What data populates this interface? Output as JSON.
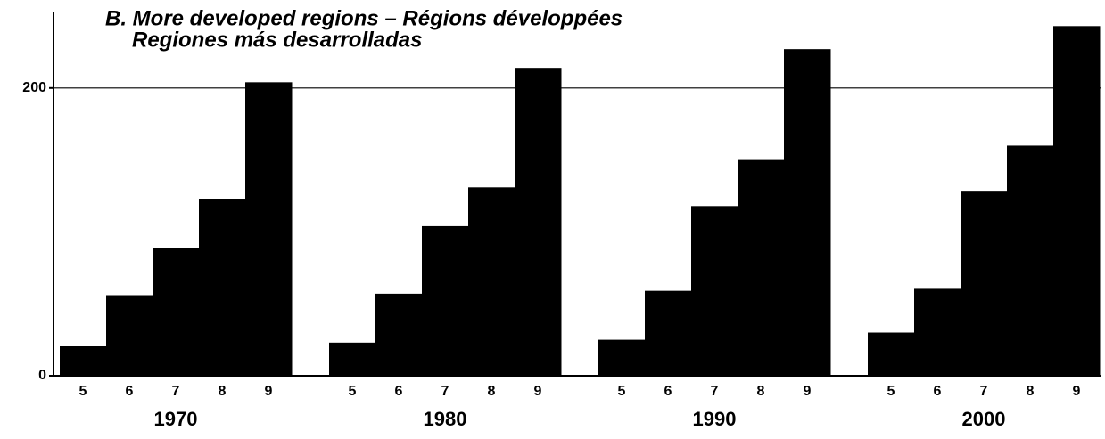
{
  "chart_data": {
    "type": "bar",
    "title": "B. More developed regions – Régions développées",
    "subtitle": "Regiones más desarrolladas",
    "categories": [
      "5",
      "6",
      "7",
      "8",
      "9"
    ],
    "groups": [
      {
        "name": "1970",
        "values": [
          21,
          56,
          89,
          123,
          204
        ]
      },
      {
        "name": "1980",
        "values": [
          23,
          57,
          104,
          131,
          214
        ]
      },
      {
        "name": "1990",
        "values": [
          25,
          59,
          118,
          150,
          227
        ]
      },
      {
        "name": "2000",
        "values": [
          30,
          61,
          128,
          160,
          243
        ]
      }
    ],
    "color": "#000000",
    "ylim": [
      0,
      250
    ],
    "yticks": [
      0,
      200
    ],
    "grid": true
  }
}
